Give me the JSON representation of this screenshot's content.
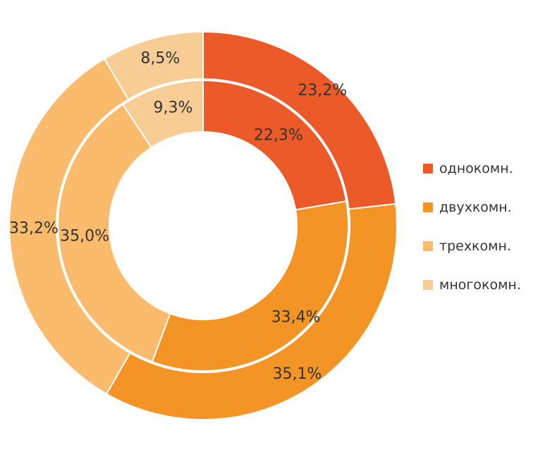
{
  "chart_data": {
    "type": "pie",
    "subtype": "doughnut",
    "categories": [
      "однокомн.",
      "двухкомн.",
      "трехкомн.",
      "многокомн."
    ],
    "colors": [
      "#ec5a2a",
      "#f39424",
      "#fbbb6c",
      "#f7cc95"
    ],
    "series": [
      {
        "ring": "outer",
        "values": [
          23.2,
          35.1,
          33.2,
          8.5
        ],
        "labels": [
          "23,2%",
          "35,1%",
          "33,2%",
          "8,5%"
        ]
      },
      {
        "ring": "inner",
        "values": [
          22.3,
          33.4,
          35.0,
          9.3
        ],
        "labels": [
          "22,3%",
          "33,4%",
          "35,0%",
          "9,3%"
        ]
      }
    ],
    "legend_position": "right"
  }
}
